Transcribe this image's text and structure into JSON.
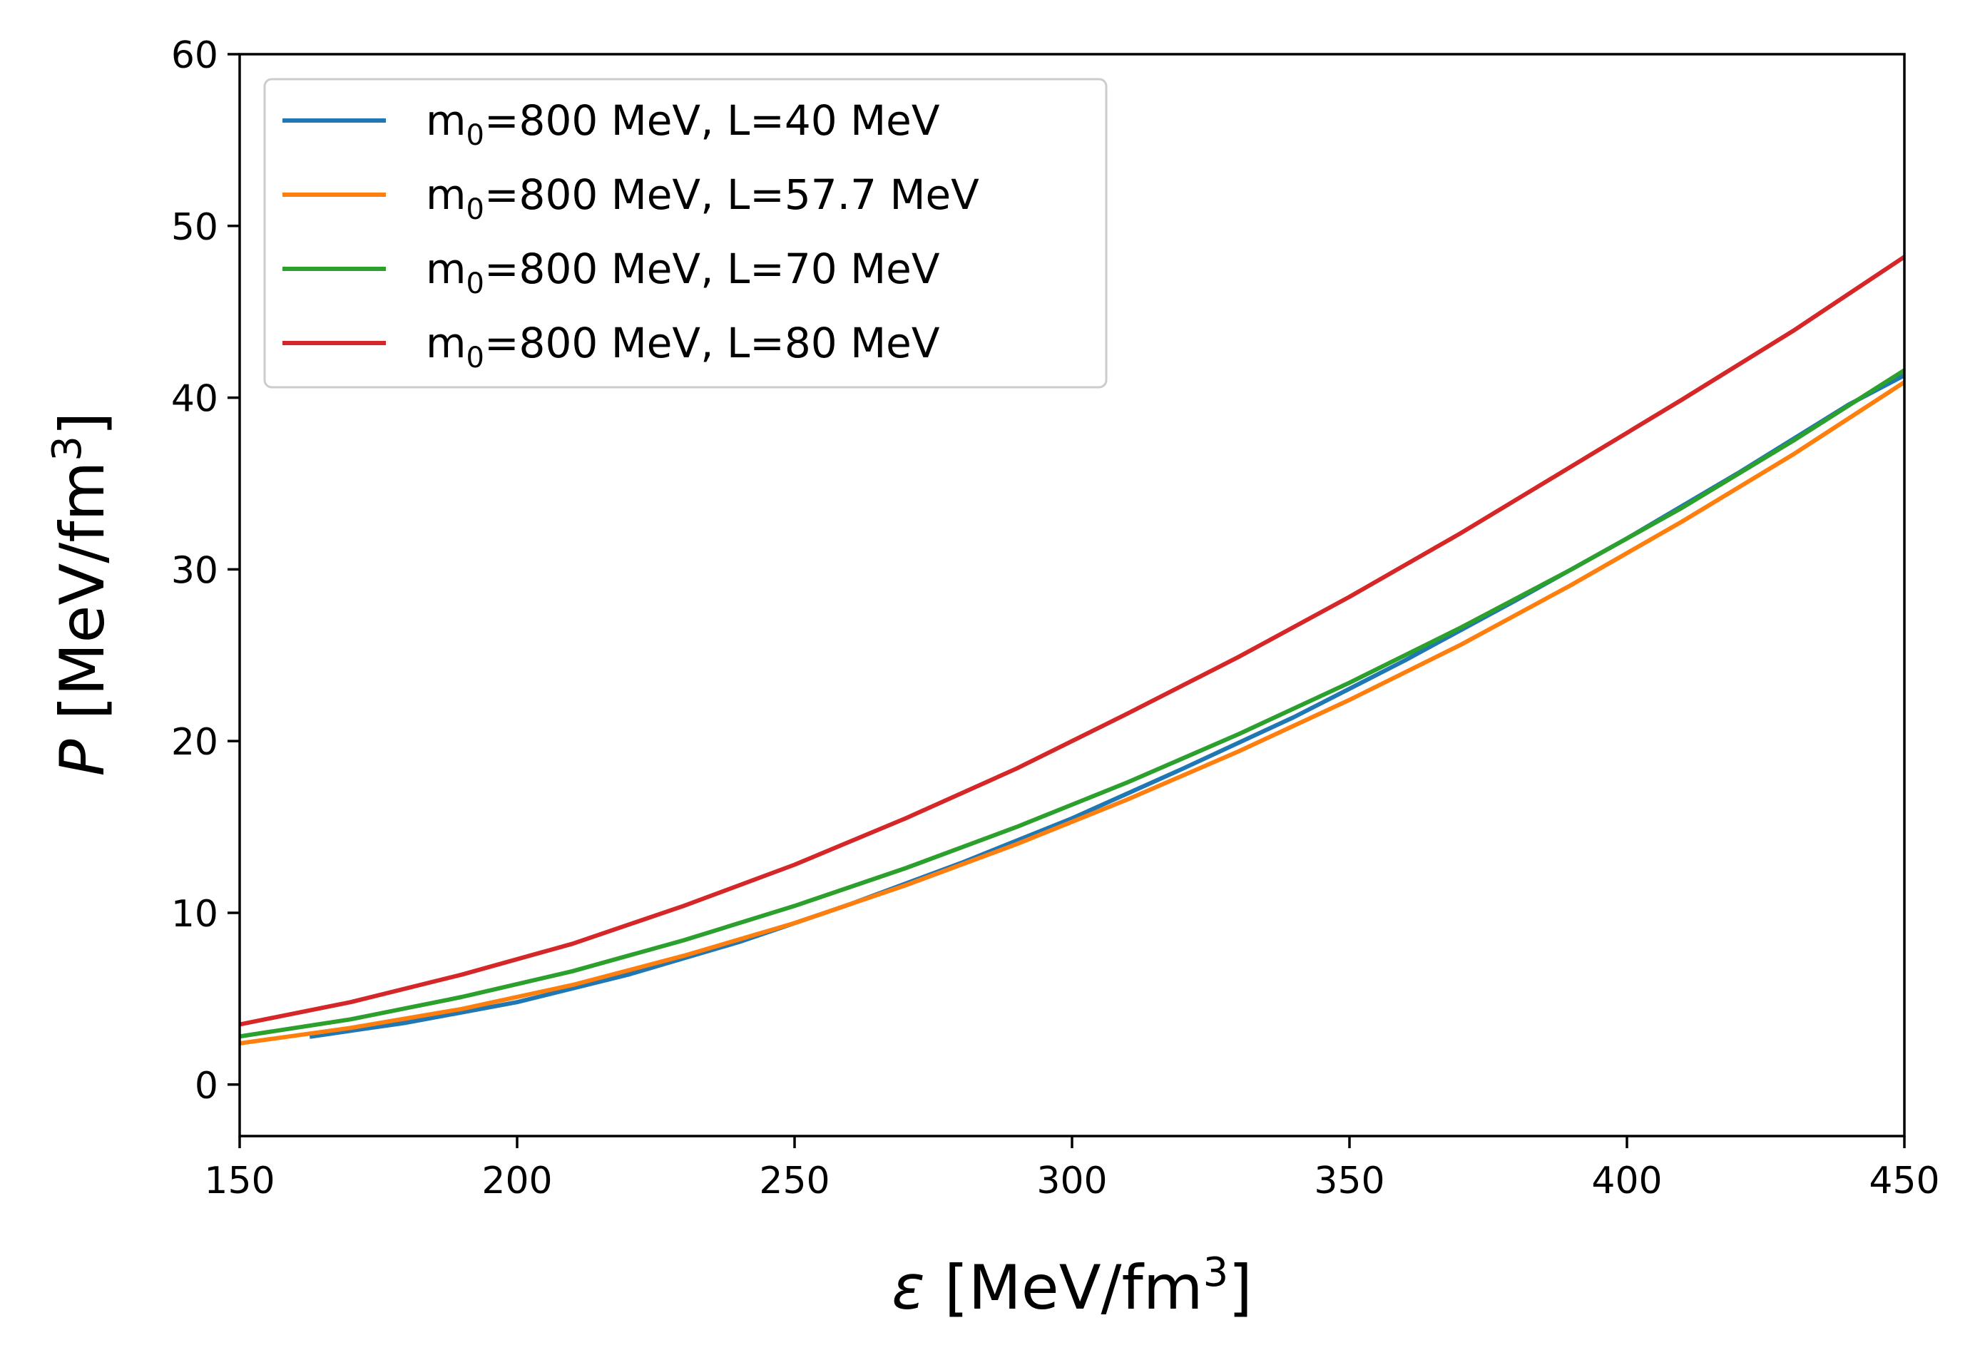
{
  "chart_data": {
    "type": "line",
    "xlabel": {
      "symbol": "ε",
      "text": " [MeV/fm",
      "sup": "3",
      "close": "]"
    },
    "ylabel": {
      "symbol": "P",
      "text": " [MeV/fm",
      "sup": "3",
      "close": "]"
    },
    "xlim": [
      150,
      450
    ],
    "ylim": [
      -3,
      60
    ],
    "xticks": [
      150,
      200,
      250,
      300,
      350,
      400,
      450
    ],
    "yticks": [
      0,
      10,
      20,
      30,
      40,
      50,
      60
    ],
    "legend_position": "upper-left",
    "series": [
      {
        "name": "m0=800 MeV, L=40 MeV",
        "label_parts": {
          "pre": "m",
          "sub": "0",
          "post": "=800 MeV, L=40 MeV"
        },
        "color": "#1f77b4",
        "x": [
          163,
          180,
          200,
          220,
          240,
          260,
          280,
          300,
          320,
          340,
          360,
          380,
          400,
          420,
          440,
          450
        ],
        "y": [
          2.8,
          3.6,
          4.8,
          6.4,
          8.3,
          10.5,
          12.9,
          15.5,
          18.4,
          21.4,
          24.7,
          28.2,
          31.8,
          35.6,
          39.6,
          41.3
        ]
      },
      {
        "name": "m0=800 MeV, L=57.7 MeV",
        "label_parts": {
          "pre": "m",
          "sub": "0",
          "post": "=800 MeV, L=57.7 MeV"
        },
        "color": "#ff7f0e",
        "x": [
          150,
          170,
          190,
          210,
          230,
          250,
          270,
          290,
          310,
          330,
          350,
          370,
          390,
          410,
          430,
          450
        ],
        "y": [
          2.4,
          3.3,
          4.4,
          5.8,
          7.5,
          9.4,
          11.6,
          14.0,
          16.6,
          19.4,
          22.4,
          25.6,
          29.1,
          32.8,
          36.7,
          40.9
        ]
      },
      {
        "name": "m0=800 MeV, L=70 MeV",
        "label_parts": {
          "pre": "m",
          "sub": "0",
          "post": "=800 MeV, L=70 MeV"
        },
        "color": "#2ca02c",
        "x": [
          150,
          170,
          190,
          210,
          230,
          250,
          270,
          290,
          310,
          330,
          350,
          370,
          390,
          410,
          430,
          450
        ],
        "y": [
          2.8,
          3.8,
          5.1,
          6.6,
          8.4,
          10.4,
          12.6,
          15.0,
          17.6,
          20.4,
          23.4,
          26.6,
          30.0,
          33.6,
          37.5,
          41.6
        ]
      },
      {
        "name": "m0=800 MeV, L=80 MeV",
        "label_parts": {
          "pre": "m",
          "sub": "0",
          "post": "=800 MeV, L=80 MeV"
        },
        "color": "#d62728",
        "x": [
          150,
          170,
          190,
          210,
          230,
          250,
          270,
          290,
          310,
          330,
          350,
          370,
          390,
          410,
          430,
          450
        ],
        "y": [
          3.5,
          4.8,
          6.4,
          8.2,
          10.4,
          12.8,
          15.5,
          18.4,
          21.6,
          24.9,
          28.4,
          32.1,
          36.0,
          39.9,
          43.9,
          48.2
        ]
      }
    ]
  }
}
